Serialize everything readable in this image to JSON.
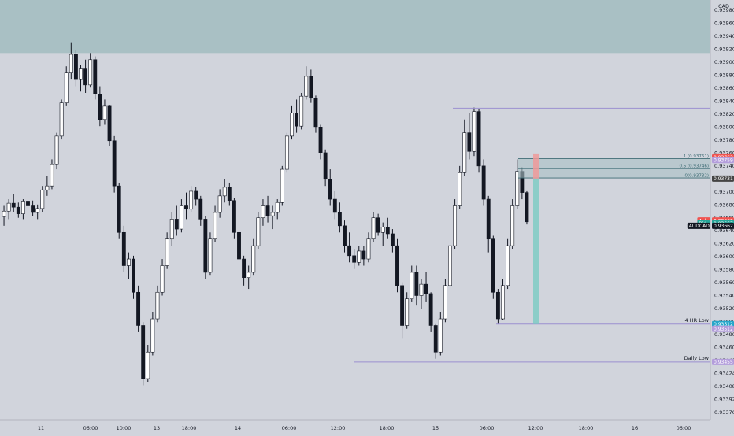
{
  "chart_data": {
    "type": "candlestick",
    "symbol": "AUDCAD",
    "currency": "CAD",
    "y_ticks": [
      "0.93980",
      "0.93960",
      "0.93940",
      "0.93920",
      "0.93900",
      "0.93880",
      "0.93860",
      "0.93840",
      "0.93820",
      "0.93800",
      "0.93780",
      "0.93760",
      "0.93740",
      "0.93720",
      "0.93700",
      "0.93680",
      "0.93660",
      "0.93640",
      "0.93620",
      "0.93600",
      "0.93580",
      "0.93560",
      "0.93540",
      "0.93520",
      "0.93500",
      "0.93480",
      "0.93460",
      "0.93440",
      "0.93424",
      "0.93408",
      "0.93392",
      "0.93376"
    ],
    "x_ticks": [
      "11",
      "06:00",
      "10:00",
      "13",
      "18:00",
      "14",
      "06:00",
      "12:00",
      "18:00",
      "15",
      "06:00",
      "12:00",
      "18:00",
      "16",
      "06:00"
    ],
    "candles": [
      [
        0.93674,
        0.9369,
        0.9366,
        0.93682
      ],
      [
        0.93682,
        0.937,
        0.9367,
        0.93694
      ],
      [
        0.93694,
        0.93708,
        0.9368,
        0.93688
      ],
      [
        0.93688,
        0.93695,
        0.93672,
        0.93678
      ],
      [
        0.93678,
        0.937,
        0.9367,
        0.93696
      ],
      [
        0.93696,
        0.9371,
        0.93685,
        0.9369
      ],
      [
        0.9369,
        0.93698,
        0.93675,
        0.9368
      ],
      [
        0.9368,
        0.93692,
        0.9367,
        0.93686
      ],
      [
        0.93686,
        0.9372,
        0.9368,
        0.93714
      ],
      [
        0.93714,
        0.93735,
        0.93705,
        0.9372
      ],
      [
        0.9372,
        0.9376,
        0.93715,
        0.93752
      ],
      [
        0.93752,
        0.938,
        0.93745,
        0.93795
      ],
      [
        0.93795,
        0.9385,
        0.9379,
        0.93845
      ],
      [
        0.93845,
        0.939,
        0.9384,
        0.9389
      ],
      [
        0.9389,
        0.93935,
        0.9388,
        0.93918
      ],
      [
        0.93918,
        0.93925,
        0.9387,
        0.9388
      ],
      [
        0.9388,
        0.93902,
        0.93862,
        0.93896
      ],
      [
        0.93896,
        0.9391,
        0.9386,
        0.93872
      ],
      [
        0.93872,
        0.9392,
        0.93868,
        0.9391
      ],
      [
        0.9391,
        0.93915,
        0.9385,
        0.93858
      ],
      [
        0.93858,
        0.9387,
        0.9381,
        0.9382
      ],
      [
        0.9382,
        0.9385,
        0.93812,
        0.9384
      ],
      [
        0.9384,
        0.93842,
        0.9378,
        0.93788
      ],
      [
        0.93788,
        0.93795,
        0.9371,
        0.9372
      ],
      [
        0.9372,
        0.93725,
        0.9364,
        0.9365
      ],
      [
        0.9365,
        0.9366,
        0.9359,
        0.936
      ],
      [
        0.936,
        0.9362,
        0.9358,
        0.9361
      ],
      [
        0.9361,
        0.93615,
        0.9355,
        0.9356
      ],
      [
        0.9356,
        0.9357,
        0.935,
        0.9351
      ],
      [
        0.9351,
        0.93515,
        0.9342,
        0.9343
      ],
      [
        0.9343,
        0.9348,
        0.93425,
        0.9347
      ],
      [
        0.9347,
        0.9353,
        0.93465,
        0.9352
      ],
      [
        0.9352,
        0.9357,
        0.93515,
        0.9356
      ],
      [
        0.9356,
        0.9361,
        0.93555,
        0.936
      ],
      [
        0.936,
        0.9365,
        0.93595,
        0.9364
      ],
      [
        0.9364,
        0.9368,
        0.9363,
        0.9367
      ],
      [
        0.9367,
        0.9369,
        0.93645,
        0.93655
      ],
      [
        0.93655,
        0.937,
        0.9365,
        0.9369
      ],
      [
        0.9369,
        0.9371,
        0.9367,
        0.93685
      ],
      [
        0.93685,
        0.9372,
        0.9368,
        0.93712
      ],
      [
        0.93712,
        0.93718,
        0.9369,
        0.937
      ],
      [
        0.937,
        0.93705,
        0.9366,
        0.9367
      ],
      [
        0.9367,
        0.93675,
        0.9358,
        0.9359
      ],
      [
        0.9359,
        0.9365,
        0.93585,
        0.9364
      ],
      [
        0.9364,
        0.9369,
        0.93635,
        0.9368
      ],
      [
        0.9368,
        0.93715,
        0.93672,
        0.93705
      ],
      [
        0.93705,
        0.9373,
        0.93695,
        0.93718
      ],
      [
        0.93718,
        0.93725,
        0.9369,
        0.93698
      ],
      [
        0.93698,
        0.93702,
        0.9364,
        0.9365
      ],
      [
        0.9365,
        0.93655,
        0.936,
        0.9361
      ],
      [
        0.9361,
        0.93615,
        0.9357,
        0.93582
      ],
      [
        0.93582,
        0.936,
        0.93565,
        0.9359
      ],
      [
        0.9359,
        0.9364,
        0.93585,
        0.9363
      ],
      [
        0.9363,
        0.9368,
        0.93625,
        0.93672
      ],
      [
        0.93672,
        0.937,
        0.9366,
        0.9369
      ],
      [
        0.9369,
        0.93705,
        0.93665,
        0.93675
      ],
      [
        0.93675,
        0.9369,
        0.93655,
        0.9368
      ],
      [
        0.9368,
        0.937,
        0.9367,
        0.93695
      ],
      [
        0.93695,
        0.9375,
        0.9369,
        0.93745
      ],
      [
        0.93745,
        0.938,
        0.9374,
        0.93795
      ],
      [
        0.93795,
        0.9384,
        0.9379,
        0.9383
      ],
      [
        0.9383,
        0.9385,
        0.938,
        0.9381
      ],
      [
        0.9381,
        0.9386,
        0.93805,
        0.93855
      ],
      [
        0.93855,
        0.939,
        0.9385,
        0.93885
      ],
      [
        0.93885,
        0.93895,
        0.93845,
        0.93852
      ],
      [
        0.93852,
        0.93856,
        0.938,
        0.93808
      ],
      [
        0.93808,
        0.93812,
        0.9376,
        0.9377
      ],
      [
        0.9377,
        0.93775,
        0.9372,
        0.9373
      ],
      [
        0.9373,
        0.93745,
        0.9369,
        0.937
      ],
      [
        0.937,
        0.93712,
        0.9367,
        0.9368
      ],
      [
        0.9368,
        0.93695,
        0.9365,
        0.9366
      ],
      [
        0.9366,
        0.93668,
        0.9362,
        0.9363
      ],
      [
        0.9363,
        0.9365,
        0.93605,
        0.93615
      ],
      [
        0.93615,
        0.93625,
        0.93595,
        0.93605
      ],
      [
        0.93605,
        0.9363,
        0.936,
        0.93622
      ],
      [
        0.93622,
        0.9363,
        0.936,
        0.9361
      ],
      [
        0.9361,
        0.9365,
        0.93605,
        0.9364
      ],
      [
        0.9364,
        0.9368,
        0.93635,
        0.93672
      ],
      [
        0.93672,
        0.93678,
        0.93645,
        0.9365
      ],
      [
        0.9365,
        0.93665,
        0.9363,
        0.93658
      ],
      [
        0.93658,
        0.93672,
        0.9364,
        0.93648
      ],
      [
        0.93648,
        0.93655,
        0.9362,
        0.9363
      ],
      [
        0.9363,
        0.9364,
        0.9356,
        0.9357
      ],
      [
        0.9357,
        0.93575,
        0.9349,
        0.9351
      ],
      [
        0.9351,
        0.9356,
        0.93505,
        0.9355
      ],
      [
        0.9355,
        0.936,
        0.93545,
        0.9359
      ],
      [
        0.9359,
        0.936,
        0.9354,
        0.93555
      ],
      [
        0.93555,
        0.9358,
        0.93535,
        0.93572
      ],
      [
        0.93572,
        0.9359,
        0.93545,
        0.93558
      ],
      [
        0.93558,
        0.9356,
        0.935,
        0.9351
      ],
      [
        0.9351,
        0.93512,
        0.9346,
        0.9347
      ],
      [
        0.9347,
        0.9353,
        0.93465,
        0.9352
      ],
      [
        0.9352,
        0.9358,
        0.93515,
        0.9357
      ],
      [
        0.9357,
        0.9364,
        0.93565,
        0.9363
      ],
      [
        0.9363,
        0.937,
        0.93625,
        0.9369
      ],
      [
        0.9369,
        0.9375,
        0.93685,
        0.9374
      ],
      [
        0.9374,
        0.9382,
        0.93735,
        0.938
      ],
      [
        0.938,
        0.9383,
        0.9376,
        0.93772
      ],
      [
        0.93772,
        0.93838,
        0.93765,
        0.93832
      ],
      [
        0.93832,
        0.93836,
        0.9374,
        0.9375
      ],
      [
        0.9375,
        0.9376,
        0.9369,
        0.937
      ],
      [
        0.937,
        0.93705,
        0.9362,
        0.9364
      ],
      [
        0.9364,
        0.93645,
        0.9355,
        0.9356
      ],
      [
        0.9356,
        0.93565,
        0.93512,
        0.9352
      ],
      [
        0.9352,
        0.9358,
        0.93518,
        0.9357
      ],
      [
        0.9357,
        0.9364,
        0.93565,
        0.9363
      ],
      [
        0.9363,
        0.937,
        0.93625,
        0.9369
      ],
      [
        0.9369,
        0.9376,
        0.93685,
        0.93742
      ],
      [
        0.93742,
        0.93748,
        0.937,
        0.9371
      ],
      [
        0.9371,
        0.93712,
        0.93662,
        0.93666
      ]
    ],
    "levels": [
      {
        "name": "resistance-zone",
        "top": 0.94,
        "bottom": 0.9392,
        "color": "#a9c0c4"
      },
      {
        "name": "swing-high",
        "price": 0.93837,
        "label_value": "0.93837",
        "color": "#9b8fd0",
        "badge_bg": "#b39ddb"
      },
      {
        "name": "4hr-low",
        "price": 0.93512,
        "label": "4 HR Low",
        "label_value": "0.93512",
        "color": "#9b8fd0",
        "badge_bg": "#b39ddb"
      },
      {
        "name": "daily-low",
        "price": 0.93455,
        "label": "Daily Low",
        "label_value": "0.93455",
        "color": "#9b8fd0",
        "badge_bg": "#b39ddb"
      }
    ],
    "fib": {
      "lines": [
        {
          "label": "1 (0.93761)",
          "price": 0.93761
        },
        {
          "label": "0.5 (0.93746)",
          "price": 0.93746
        },
        {
          "label": "0(0.93732)",
          "price": 0.93732
        }
      ],
      "top_label": "1 (0.93761)"
    },
    "position": {
      "entry": 0.93731,
      "stop": 0.93763,
      "target": 0.93512
    },
    "price_badges": [
      {
        "label": "0.93763",
        "price": 0.93763,
        "bg": "#ef5350",
        "fg": "#ffffff"
      },
      {
        "label": "0.93759",
        "price": 0.93759,
        "bg": "#b39ddb",
        "fg": "#ffffff"
      },
      {
        "label": "0.93731",
        "price": 0.93731,
        "bg": "#444444",
        "fg": "#ffffff"
      },
      {
        "label": "0.93668",
        "price": 0.93668,
        "bg": "#ef5350",
        "fg": "#ffffff",
        "tag": "Ask"
      },
      {
        "label": "0.93667",
        "price": 0.93664,
        "bg": "#26a69a",
        "fg": "#ffffff",
        "tag": "Bid"
      },
      {
        "label": "0.93662",
        "price": 0.9366,
        "bg": "#131722",
        "fg": "#ffffff",
        "tag": "AUDCAD"
      },
      {
        "label": "0.93512",
        "price": 0.93512,
        "bg": "#26a6c9",
        "fg": "#ffffff"
      },
      {
        "label": "0.93512",
        "price": 0.93505,
        "bg": "#b39ddb",
        "fg": "#ffffff"
      },
      {
        "label": "0.93455",
        "price": 0.93455,
        "bg": "#b39ddb",
        "fg": "#ffffff"
      }
    ],
    "colors": {
      "background": "#d1d4dc",
      "candle": "#131722",
      "grid": "#c8cbd3",
      "axis_text": "#131722"
    }
  }
}
